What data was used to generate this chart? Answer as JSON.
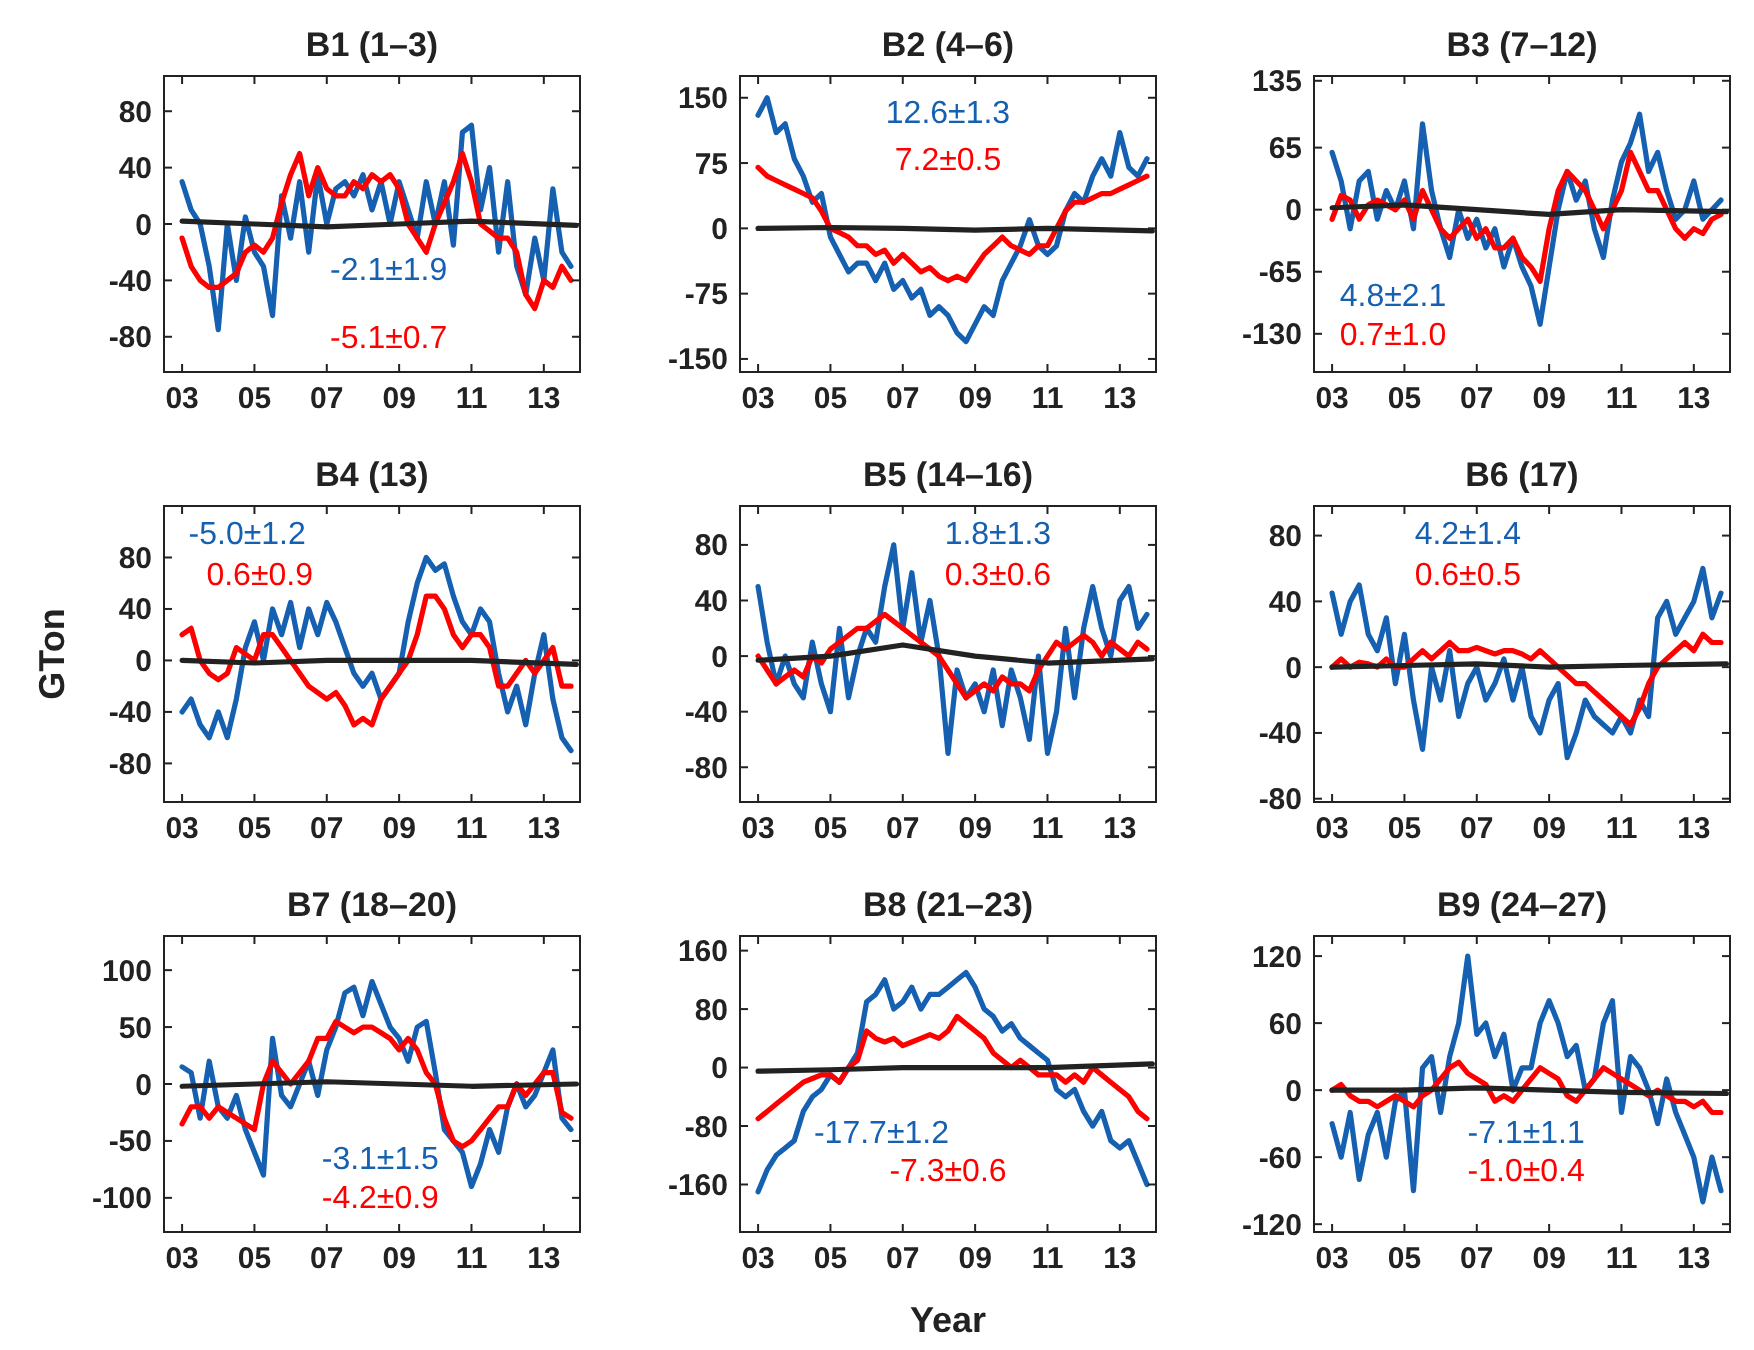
{
  "chart_data": [
    {
      "type": "line",
      "title": "B1 (1–3)",
      "xlim": [
        2002.5,
        2014
      ],
      "ylim": [
        -105,
        105
      ],
      "yticks": [
        -80,
        -40,
        0,
        40,
        80
      ],
      "xticks": [
        {
          "value": 2003,
          "label": "03"
        },
        {
          "value": 2005,
          "label": "05"
        },
        {
          "value": 2007,
          "label": "07"
        },
        {
          "value": 2009,
          "label": "09"
        },
        {
          "value": 2011,
          "label": "11"
        },
        {
          "value": 2013,
          "label": "13"
        }
      ],
      "x": [
        2003,
        2003.25,
        2003.5,
        2003.75,
        2004,
        2004.25,
        2004.5,
        2004.75,
        2005,
        2005.25,
        2005.5,
        2005.75,
        2006,
        2006.25,
        2006.5,
        2006.75,
        2007,
        2007.25,
        2007.5,
        2007.75,
        2008,
        2008.25,
        2008.5,
        2008.75,
        2009,
        2009.25,
        2009.5,
        2009.75,
        2010,
        2010.25,
        2010.5,
        2010.75,
        2011,
        2011.25,
        2011.5,
        2011.75,
        2012,
        2012.25,
        2012.5,
        2012.75,
        2013,
        2013.25,
        2013.5,
        2013.75
      ],
      "series": [
        {
          "color": "#1560b0",
          "values": [
            30,
            10,
            0,
            -30,
            -75,
            0,
            -40,
            5,
            -20,
            -30,
            -65,
            20,
            -10,
            30,
            -20,
            35,
            0,
            25,
            30,
            20,
            35,
            10,
            30,
            0,
            30,
            10,
            -10,
            30,
            0,
            30,
            -15,
            65,
            70,
            10,
            40,
            -20,
            30,
            -30,
            -50,
            -10,
            -40,
            25,
            -20,
            -30
          ]
        },
        {
          "color": "#ff0000",
          "values": [
            -10,
            -30,
            -40,
            -45,
            -45,
            -40,
            -35,
            -20,
            -15,
            -20,
            -10,
            15,
            35,
            50,
            20,
            40,
            25,
            20,
            20,
            30,
            25,
            35,
            30,
            35,
            25,
            0,
            -10,
            -20,
            0,
            15,
            30,
            50,
            30,
            0,
            -5,
            -10,
            -10,
            -20,
            -50,
            -60,
            -40,
            -45,
            -30,
            -40
          ]
        },
        {
          "color": "#222222",
          "x": [
            2003,
            2005,
            2007,
            2009,
            2011,
            2013.9
          ],
          "values": [
            2,
            0,
            -2,
            0,
            2,
            -1
          ]
        }
      ],
      "annotations": [
        "-2.1±1.9",
        "-5.1±0.7"
      ]
    },
    {
      "type": "line",
      "title": "B2 (4–6)",
      "xlim": [
        2002.5,
        2014
      ],
      "ylim": [
        -165,
        175
      ],
      "yticks": [
        -150,
        -75,
        0,
        75,
        150
      ],
      "xticks": [
        {
          "value": 2003,
          "label": "03"
        },
        {
          "value": 2005,
          "label": "05"
        },
        {
          "value": 2007,
          "label": "07"
        },
        {
          "value": 2009,
          "label": "09"
        },
        {
          "value": 2011,
          "label": "11"
        },
        {
          "value": 2013,
          "label": "13"
        }
      ],
      "x": [
        2003,
        2003.25,
        2003.5,
        2003.75,
        2004,
        2004.25,
        2004.5,
        2004.75,
        2005,
        2005.25,
        2005.5,
        2005.75,
        2006,
        2006.25,
        2006.5,
        2006.75,
        2007,
        2007.25,
        2007.5,
        2007.75,
        2008,
        2008.25,
        2008.5,
        2008.75,
        2009,
        2009.25,
        2009.5,
        2009.75,
        2010,
        2010.25,
        2010.5,
        2010.75,
        2011,
        2011.25,
        2011.5,
        2011.75,
        2012,
        2012.25,
        2012.5,
        2012.75,
        2013,
        2013.25,
        2013.5,
        2013.75
      ],
      "series": [
        {
          "color": "#1560b0",
          "values": [
            130,
            150,
            110,
            120,
            80,
            60,
            30,
            40,
            -10,
            -30,
            -50,
            -40,
            -40,
            -60,
            -40,
            -70,
            -60,
            -80,
            -70,
            -100,
            -90,
            -100,
            -120,
            -130,
            -110,
            -90,
            -100,
            -60,
            -40,
            -20,
            10,
            -20,
            -30,
            -20,
            20,
            40,
            30,
            60,
            80,
            60,
            110,
            70,
            60,
            80
          ]
        },
        {
          "color": "#ff0000",
          "values": [
            70,
            60,
            55,
            50,
            45,
            40,
            35,
            20,
            0,
            -5,
            -10,
            -20,
            -20,
            -30,
            -25,
            -40,
            -30,
            -40,
            -50,
            -45,
            -55,
            -60,
            -55,
            -60,
            -45,
            -30,
            -20,
            -10,
            -20,
            -25,
            -30,
            -20,
            -20,
            0,
            20,
            30,
            30,
            35,
            40,
            40,
            45,
            50,
            55,
            60
          ]
        },
        {
          "color": "#222222",
          "x": [
            2003,
            2005,
            2007,
            2009,
            2011,
            2013.9
          ],
          "values": [
            0,
            1,
            0,
            -2,
            0,
            -3
          ]
        }
      ],
      "annotations": [
        "12.6±1.3",
        "7.2±0.5"
      ]
    },
    {
      "type": "line",
      "title": "B3 (7–12)",
      "xlim": [
        2002.5,
        2014
      ],
      "ylim": [
        -170,
        140
      ],
      "yticks": [
        -130,
        -65,
        0,
        65,
        135
      ],
      "xticks": [
        {
          "value": 2003,
          "label": "03"
        },
        {
          "value": 2005,
          "label": "05"
        },
        {
          "value": 2007,
          "label": "07"
        },
        {
          "value": 2009,
          "label": "09"
        },
        {
          "value": 2011,
          "label": "11"
        },
        {
          "value": 2013,
          "label": "13"
        }
      ],
      "x": [
        2003,
        2003.25,
        2003.5,
        2003.75,
        2004,
        2004.25,
        2004.5,
        2004.75,
        2005,
        2005.25,
        2005.5,
        2005.75,
        2006,
        2006.25,
        2006.5,
        2006.75,
        2007,
        2007.25,
        2007.5,
        2007.75,
        2008,
        2008.25,
        2008.5,
        2008.75,
        2009,
        2009.25,
        2009.5,
        2009.75,
        2010,
        2010.25,
        2010.5,
        2010.75,
        2011,
        2011.25,
        2011.5,
        2011.75,
        2012,
        2012.25,
        2012.5,
        2012.75,
        2013,
        2013.25,
        2013.5,
        2013.75
      ],
      "series": [
        {
          "color": "#1560b0",
          "values": [
            60,
            30,
            -20,
            30,
            40,
            -10,
            20,
            0,
            30,
            -20,
            90,
            20,
            -20,
            -50,
            0,
            -30,
            -10,
            -40,
            -20,
            -60,
            -30,
            -60,
            -80,
            -120,
            -60,
            0,
            40,
            10,
            30,
            -20,
            -50,
            10,
            50,
            70,
            100,
            40,
            60,
            20,
            -10,
            0,
            30,
            -10,
            0,
            10
          ]
        },
        {
          "color": "#ff0000",
          "values": [
            -10,
            15,
            10,
            -10,
            5,
            10,
            5,
            0,
            10,
            -10,
            20,
            0,
            -20,
            -30,
            -20,
            -10,
            -30,
            -20,
            -40,
            -40,
            -30,
            -50,
            -60,
            -75,
            -20,
            20,
            40,
            30,
            20,
            0,
            -20,
            0,
            20,
            60,
            40,
            20,
            20,
            0,
            -20,
            -30,
            -20,
            -25,
            -10,
            -5
          ]
        },
        {
          "color": "#222222",
          "x": [
            2003,
            2005,
            2007,
            2009,
            2011,
            2013.9
          ],
          "values": [
            2,
            5,
            0,
            -5,
            0,
            -2
          ]
        }
      ],
      "annotations": [
        "4.8±2.1",
        "0.7±1.0"
      ]
    },
    {
      "type": "line",
      "title": "B4 (13)",
      "ylabel": "GTon",
      "xlim": [
        2002.5,
        2014
      ],
      "ylim": [
        -110,
        120
      ],
      "yticks": [
        -80,
        -40,
        0,
        40,
        80
      ],
      "xticks": [
        {
          "value": 2003,
          "label": "03"
        },
        {
          "value": 2005,
          "label": "05"
        },
        {
          "value": 2007,
          "label": "07"
        },
        {
          "value": 2009,
          "label": "09"
        },
        {
          "value": 2011,
          "label": "11"
        },
        {
          "value": 2013,
          "label": "13"
        }
      ],
      "x": [
        2003,
        2003.25,
        2003.5,
        2003.75,
        2004,
        2004.25,
        2004.5,
        2004.75,
        2005,
        2005.25,
        2005.5,
        2005.75,
        2006,
        2006.25,
        2006.5,
        2006.75,
        2007,
        2007.25,
        2007.5,
        2007.75,
        2008,
        2008.25,
        2008.5,
        2008.75,
        2009,
        2009.25,
        2009.5,
        2009.75,
        2010,
        2010.25,
        2010.5,
        2010.75,
        2011,
        2011.25,
        2011.5,
        2011.75,
        2012,
        2012.25,
        2012.5,
        2012.75,
        2013,
        2013.25,
        2013.5,
        2013.75
      ],
      "series": [
        {
          "color": "#1560b0",
          "values": [
            -40,
            -30,
            -50,
            -60,
            -40,
            -60,
            -30,
            10,
            30,
            0,
            40,
            20,
            45,
            10,
            40,
            20,
            45,
            30,
            10,
            -10,
            -20,
            -10,
            -30,
            -20,
            -10,
            30,
            60,
            80,
            70,
            75,
            50,
            30,
            20,
            40,
            30,
            -10,
            -40,
            -20,
            -50,
            -10,
            20,
            -30,
            -60,
            -70
          ]
        },
        {
          "color": "#ff0000",
          "values": [
            20,
            25,
            0,
            -10,
            -15,
            -10,
            10,
            5,
            0,
            20,
            20,
            10,
            0,
            -10,
            -20,
            -25,
            -30,
            -25,
            -35,
            -50,
            -45,
            -50,
            -30,
            -20,
            -10,
            0,
            20,
            50,
            50,
            40,
            20,
            10,
            20,
            20,
            10,
            -20,
            -20,
            -10,
            0,
            -10,
            0,
            10,
            -20,
            -20
          ]
        },
        {
          "color": "#222222",
          "x": [
            2003,
            2005,
            2007,
            2009,
            2011,
            2013.9
          ],
          "values": [
            0,
            -2,
            0,
            0,
            0,
            -3
          ]
        }
      ],
      "annotations": [
        "-5.0±1.2",
        "0.6±0.9"
      ]
    },
    {
      "type": "line",
      "title": "B5 (14–16)",
      "xlim": [
        2002.5,
        2014
      ],
      "ylim": [
        -105,
        108
      ],
      "yticks": [
        -80,
        -40,
        0,
        40,
        80
      ],
      "xticks": [
        {
          "value": 2003,
          "label": "03"
        },
        {
          "value": 2005,
          "label": "05"
        },
        {
          "value": 2007,
          "label": "07"
        },
        {
          "value": 2009,
          "label": "09"
        },
        {
          "value": 2011,
          "label": "11"
        },
        {
          "value": 2013,
          "label": "13"
        }
      ],
      "x": [
        2003,
        2003.25,
        2003.5,
        2003.75,
        2004,
        2004.25,
        2004.5,
        2004.75,
        2005,
        2005.25,
        2005.5,
        2005.75,
        2006,
        2006.25,
        2006.5,
        2006.75,
        2007,
        2007.25,
        2007.5,
        2007.75,
        2008,
        2008.25,
        2008.5,
        2008.75,
        2009,
        2009.25,
        2009.5,
        2009.75,
        2010,
        2010.25,
        2010.5,
        2010.75,
        2011,
        2011.25,
        2011.5,
        2011.75,
        2012,
        2012.25,
        2012.5,
        2012.75,
        2013,
        2013.25,
        2013.5,
        2013.75
      ],
      "series": [
        {
          "color": "#1560b0",
          "values": [
            50,
            10,
            -20,
            0,
            -20,
            -30,
            10,
            -20,
            -40,
            20,
            -30,
            0,
            20,
            10,
            50,
            80,
            20,
            60,
            10,
            40,
            0,
            -70,
            -10,
            -30,
            -20,
            -40,
            -10,
            -50,
            -10,
            -30,
            -60,
            0,
            -70,
            -40,
            20,
            -30,
            20,
            50,
            20,
            0,
            40,
            50,
            20,
            30
          ]
        },
        {
          "color": "#ff0000",
          "values": [
            0,
            -10,
            -20,
            -15,
            -10,
            -15,
            0,
            -5,
            5,
            10,
            15,
            20,
            20,
            25,
            30,
            25,
            20,
            15,
            10,
            5,
            0,
            -10,
            -20,
            -30,
            -25,
            -20,
            -25,
            -15,
            -20,
            -20,
            -25,
            -10,
            0,
            10,
            5,
            10,
            15,
            10,
            0,
            10,
            5,
            0,
            10,
            5
          ]
        },
        {
          "color": "#222222",
          "x": [
            2003,
            2005,
            2007,
            2009,
            2011,
            2013.9
          ],
          "values": [
            -3,
            0,
            8,
            0,
            -5,
            -2
          ]
        }
      ],
      "annotations": [
        "1.8±1.3",
        "0.3±0.6"
      ]
    },
    {
      "type": "line",
      "title": "B6 (17)",
      "xlim": [
        2002.5,
        2014
      ],
      "ylim": [
        -82,
        98
      ],
      "yticks": [
        -80,
        -40,
        0,
        40,
        80
      ],
      "xticks": [
        {
          "value": 2003,
          "label": "03"
        },
        {
          "value": 2005,
          "label": "05"
        },
        {
          "value": 2007,
          "label": "07"
        },
        {
          "value": 2009,
          "label": "09"
        },
        {
          "value": 2011,
          "label": "11"
        },
        {
          "value": 2013,
          "label": "13"
        }
      ],
      "x": [
        2003,
        2003.25,
        2003.5,
        2003.75,
        2004,
        2004.25,
        2004.5,
        2004.75,
        2005,
        2005.25,
        2005.5,
        2005.75,
        2006,
        2006.25,
        2006.5,
        2006.75,
        2007,
        2007.25,
        2007.5,
        2007.75,
        2008,
        2008.25,
        2008.5,
        2008.75,
        2009,
        2009.25,
        2009.5,
        2009.75,
        2010,
        2010.25,
        2010.5,
        2010.75,
        2011,
        2011.25,
        2011.5,
        2011.75,
        2012,
        2012.25,
        2012.5,
        2012.75,
        2013,
        2013.25,
        2013.5,
        2013.75
      ],
      "series": [
        {
          "color": "#1560b0",
          "values": [
            45,
            20,
            40,
            50,
            20,
            10,
            30,
            -10,
            20,
            -20,
            -50,
            0,
            -20,
            10,
            -30,
            -10,
            0,
            -20,
            -10,
            5,
            -20,
            0,
            -30,
            -40,
            -20,
            -10,
            -55,
            -40,
            -20,
            -30,
            -35,
            -40,
            -30,
            -40,
            -20,
            -30,
            30,
            40,
            20,
            30,
            40,
            60,
            30,
            45
          ]
        },
        {
          "color": "#ff0000",
          "values": [
            0,
            5,
            0,
            3,
            2,
            0,
            5,
            0,
            0,
            5,
            10,
            5,
            10,
            15,
            10,
            10,
            12,
            10,
            8,
            10,
            10,
            8,
            5,
            10,
            5,
            0,
            -5,
            -10,
            -10,
            -15,
            -20,
            -25,
            -30,
            -35,
            -25,
            -10,
            0,
            5,
            10,
            15,
            10,
            20,
            15,
            15
          ]
        },
        {
          "color": "#222222",
          "x": [
            2003,
            2005,
            2007,
            2009,
            2011,
            2013.9
          ],
          "values": [
            0,
            1,
            2,
            0,
            1,
            2
          ]
        }
      ],
      "annotations": [
        "4.2±1.4",
        "0.6±0.5"
      ]
    },
    {
      "type": "line",
      "title": "B7 (18–20)",
      "xlim": [
        2002.5,
        2014
      ],
      "ylim": [
        -130,
        130
      ],
      "yticks": [
        -100,
        -50,
        0,
        50,
        100
      ],
      "xticks": [
        {
          "value": 2003,
          "label": "03"
        },
        {
          "value": 2005,
          "label": "05"
        },
        {
          "value": 2007,
          "label": "07"
        },
        {
          "value": 2009,
          "label": "09"
        },
        {
          "value": 2011,
          "label": "11"
        },
        {
          "value": 2013,
          "label": "13"
        }
      ],
      "x": [
        2003,
        2003.25,
        2003.5,
        2003.75,
        2004,
        2004.25,
        2004.5,
        2004.75,
        2005,
        2005.25,
        2005.5,
        2005.75,
        2006,
        2006.25,
        2006.5,
        2006.75,
        2007,
        2007.25,
        2007.5,
        2007.75,
        2008,
        2008.25,
        2008.5,
        2008.75,
        2009,
        2009.25,
        2009.5,
        2009.75,
        2010,
        2010.25,
        2010.5,
        2010.75,
        2011,
        2011.25,
        2011.5,
        2011.75,
        2012,
        2012.25,
        2012.5,
        2012.75,
        2013,
        2013.25,
        2013.5,
        2013.75
      ],
      "series": [
        {
          "color": "#1560b0",
          "values": [
            15,
            10,
            -30,
            20,
            -20,
            -30,
            -10,
            -40,
            -60,
            -80,
            40,
            -10,
            -20,
            0,
            20,
            -10,
            30,
            50,
            80,
            85,
            60,
            90,
            70,
            50,
            40,
            20,
            50,
            55,
            10,
            -40,
            -50,
            -60,
            -90,
            -70,
            -40,
            -60,
            -20,
            0,
            -20,
            -10,
            10,
            30,
            -30,
            -40
          ]
        },
        {
          "color": "#ff0000",
          "values": [
            -35,
            -20,
            -20,
            -30,
            -20,
            -25,
            -30,
            -35,
            -40,
            0,
            20,
            10,
            0,
            10,
            20,
            40,
            40,
            55,
            50,
            45,
            50,
            50,
            45,
            40,
            30,
            40,
            30,
            10,
            0,
            -30,
            -50,
            -55,
            -50,
            -40,
            -30,
            -20,
            -20,
            0,
            -10,
            0,
            10,
            10,
            -25,
            -30
          ]
        },
        {
          "color": "#222222",
          "x": [
            2003,
            2005,
            2007,
            2009,
            2011,
            2013.9
          ],
          "values": [
            -2,
            0,
            2,
            0,
            -2,
            0
          ]
        }
      ],
      "annotations": [
        "-3.1±1.5",
        "-4.2±0.9"
      ]
    },
    {
      "type": "line",
      "title": "B8 (21–23)",
      "xlabel": "Year",
      "xlim": [
        2002.5,
        2014
      ],
      "ylim": [
        -225,
        180
      ],
      "yticks": [
        -160,
        -80,
        0,
        80,
        160
      ],
      "xticks": [
        {
          "value": 2003,
          "label": "03"
        },
        {
          "value": 2005,
          "label": "05"
        },
        {
          "value": 2007,
          "label": "07"
        },
        {
          "value": 2009,
          "label": "09"
        },
        {
          "value": 2011,
          "label": "11"
        },
        {
          "value": 2013,
          "label": "13"
        }
      ],
      "x": [
        2003,
        2003.25,
        2003.5,
        2003.75,
        2004,
        2004.25,
        2004.5,
        2004.75,
        2005,
        2005.25,
        2005.5,
        2005.75,
        2006,
        2006.25,
        2006.5,
        2006.75,
        2007,
        2007.25,
        2007.5,
        2007.75,
        2008,
        2008.25,
        2008.5,
        2008.75,
        2009,
        2009.25,
        2009.5,
        2009.75,
        2010,
        2010.25,
        2010.5,
        2010.75,
        2011,
        2011.25,
        2011.5,
        2011.75,
        2012,
        2012.25,
        2012.5,
        2012.75,
        2013,
        2013.25,
        2013.5,
        2013.75
      ],
      "series": [
        {
          "color": "#1560b0",
          "values": [
            -170,
            -140,
            -120,
            -110,
            -100,
            -60,
            -40,
            -30,
            -10,
            -20,
            0,
            20,
            90,
            100,
            120,
            80,
            90,
            110,
            80,
            100,
            100,
            110,
            120,
            130,
            110,
            80,
            70,
            50,
            60,
            40,
            30,
            20,
            10,
            -30,
            -40,
            -30,
            -60,
            -80,
            -60,
            -100,
            -110,
            -100,
            -130,
            -160
          ]
        },
        {
          "color": "#ff0000",
          "values": [
            -70,
            -60,
            -50,
            -40,
            -30,
            -20,
            -15,
            -10,
            -10,
            -20,
            0,
            10,
            50,
            40,
            35,
            40,
            30,
            35,
            40,
            45,
            40,
            50,
            70,
            60,
            50,
            40,
            20,
            10,
            0,
            10,
            0,
            -10,
            -10,
            -10,
            -20,
            -10,
            -20,
            0,
            -10,
            -20,
            -30,
            -40,
            -60,
            -70
          ]
        },
        {
          "color": "#222222",
          "x": [
            2003,
            2005,
            2007,
            2009,
            2011,
            2013.9
          ],
          "values": [
            -5,
            -3,
            0,
            0,
            0,
            5
          ]
        }
      ],
      "annotations": [
        "-17.7±1.2",
        "-7.3±0.6"
      ]
    },
    {
      "type": "line",
      "title": "B9 (24–27)",
      "xlim": [
        2002.5,
        2014
      ],
      "ylim": [
        -127,
        138
      ],
      "yticks": [
        -120,
        -60,
        0,
        60,
        120
      ],
      "xticks": [
        {
          "value": 2003,
          "label": "03"
        },
        {
          "value": 2005,
          "label": "05"
        },
        {
          "value": 2007,
          "label": "07"
        },
        {
          "value": 2009,
          "label": "09"
        },
        {
          "value": 2011,
          "label": "11"
        },
        {
          "value": 2013,
          "label": "13"
        }
      ],
      "x": [
        2003,
        2003.25,
        2003.5,
        2003.75,
        2004,
        2004.25,
        2004.5,
        2004.75,
        2005,
        2005.25,
        2005.5,
        2005.75,
        2006,
        2006.25,
        2006.5,
        2006.75,
        2007,
        2007.25,
        2007.5,
        2007.75,
        2008,
        2008.25,
        2008.5,
        2008.75,
        2009,
        2009.25,
        2009.5,
        2009.75,
        2010,
        2010.25,
        2010.5,
        2010.75,
        2011,
        2011.25,
        2011.5,
        2011.75,
        2012,
        2012.25,
        2012.5,
        2012.75,
        2013,
        2013.25,
        2013.5,
        2013.75
      ],
      "series": [
        {
          "color": "#1560b0",
          "values": [
            -30,
            -60,
            -20,
            -80,
            -40,
            -20,
            -60,
            -10,
            0,
            -90,
            20,
            30,
            -20,
            30,
            60,
            120,
            50,
            60,
            30,
            50,
            0,
            20,
            20,
            60,
            80,
            60,
            30,
            40,
            0,
            10,
            60,
            80,
            -20,
            30,
            20,
            0,
            -30,
            10,
            -20,
            -40,
            -60,
            -100,
            -60,
            -90
          ]
        },
        {
          "color": "#ff0000",
          "values": [
            0,
            5,
            -5,
            -10,
            -10,
            -15,
            -10,
            -5,
            -10,
            -15,
            -5,
            0,
            10,
            20,
            25,
            15,
            10,
            5,
            -10,
            -5,
            -10,
            0,
            10,
            20,
            15,
            10,
            -5,
            -10,
            0,
            10,
            20,
            15,
            10,
            5,
            0,
            -5,
            0,
            -5,
            -10,
            -10,
            -15,
            -10,
            -20,
            -20
          ]
        },
        {
          "color": "#222222",
          "x": [
            2003,
            2005,
            2007,
            2009,
            2011,
            2013.9
          ],
          "values": [
            0,
            0,
            2,
            0,
            -2,
            -3
          ]
        }
      ],
      "annotations": [
        "-7.1±1.1",
        "-1.0±0.4"
      ]
    }
  ]
}
